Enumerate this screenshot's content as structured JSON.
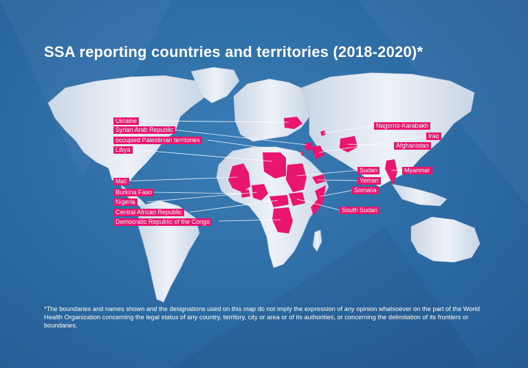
{
  "title": "SSA reporting countries and territories (2018-2020)*",
  "footnote": "*The boundaries and names shown and the designations used on this map do not imply the expression of any opinion whatsoever on the part of the World Health Organization concerning the legal status of any country, territory, city or area or of its authorities, or concerning the delimitation of its frontiers or boundaries.",
  "colors": {
    "background": "#2f6fa8",
    "land": "#dfe7f0",
    "highlight": "#e8166e",
    "label_bg": "#e8166e",
    "text": "#ffffff"
  },
  "labels_left": [
    "Ukraine",
    "Syrian Arab Republic",
    "occupied Palestinian territories",
    "Libya",
    "Mali",
    "Burkina Faso",
    "Nigeria",
    "Central African Republic",
    "Democratic Republic of the Congo"
  ],
  "labels_right": [
    "Nagorno-Karabakh",
    "Iraq",
    "Afghanistan",
    "Sudan",
    "Myanmar",
    "Yemen",
    "Somalia",
    "South Sudan"
  ]
}
